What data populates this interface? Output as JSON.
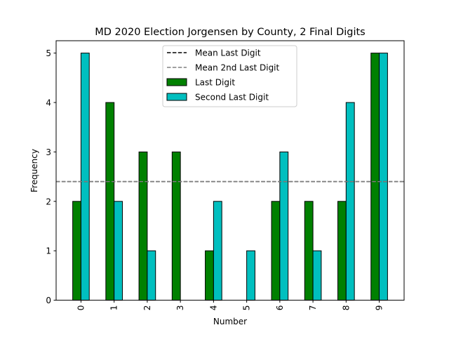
{
  "chart_data": {
    "type": "bar",
    "title": "MD 2020 Election Jorgensen by County, 2 Final Digits",
    "xlabel": "Number",
    "ylabel": "Frequency",
    "categories": [
      "0",
      "1",
      "2",
      "3",
      "4",
      "5",
      "6",
      "7",
      "8",
      "9"
    ],
    "series": [
      {
        "name": "Last Digit",
        "color": "#008000",
        "values": [
          2,
          4,
          3,
          3,
          1,
          0,
          2,
          2,
          2,
          5
        ]
      },
      {
        "name": "Second Last Digit",
        "color": "#00bfbf",
        "values": [
          5,
          2,
          1,
          0,
          2,
          1,
          3,
          1,
          4,
          5
        ]
      }
    ],
    "reference_lines": [
      {
        "name": "Mean Last Digit",
        "value": 2.4,
        "color": "#000000",
        "style": "dashed"
      },
      {
        "name": "Mean 2nd Last Digit",
        "value": 2.4,
        "color": "#808080",
        "style": "dashed"
      }
    ],
    "ylim": [
      0,
      5.25
    ],
    "yticks": [
      "0",
      "1",
      "2",
      "3",
      "4",
      "5"
    ],
    "grid": false,
    "legend_position": "upper center",
    "xtick_rotation": 90
  }
}
